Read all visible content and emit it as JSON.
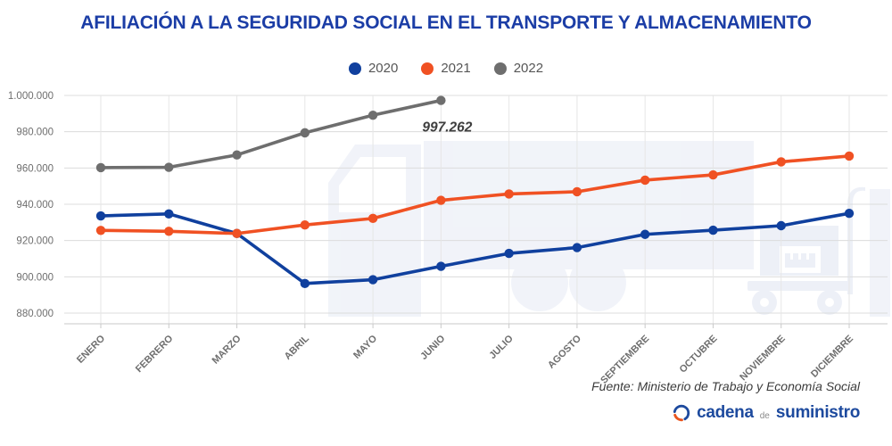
{
  "title": "AFILIACIÓN A LA SEGURIDAD SOCIAL EN EL TRANSPORTE Y ALMACENAMIENTO",
  "colors": {
    "title": "#1b3da6",
    "axis_text": "#6e6e6e",
    "grid": "#dcdcdc",
    "vgrid": "#e6e6e6",
    "axis_line": "#c9c9c9",
    "annotation": "#3f3f3f",
    "source_text": "#3c3c3c",
    "legend_text": "#565656",
    "logo_blue": "#1d4a9e",
    "logo_orange": "#e8541d",
    "watermark": "#e9edf6"
  },
  "chart_data": {
    "type": "line",
    "categories": [
      "ENERO",
      "FEBRERO",
      "MARZO",
      "ABRIL",
      "MAYO",
      "JUNIO",
      "JULIO",
      "AGOSTO",
      "SEPTIEMBRE",
      "OCTUBRE",
      "NOVIEMBRE",
      "DICIEMBRE"
    ],
    "series": [
      {
        "name": "2020",
        "color": "#10409e",
        "values": [
          933600,
          934700,
          923900,
          896300,
          898400,
          905800,
          912900,
          916100,
          923400,
          925700,
          928200,
          935000
        ]
      },
      {
        "name": "2021",
        "color": "#f05123",
        "values": [
          925600,
          925100,
          923900,
          928600,
          932200,
          942200,
          945700,
          946900,
          953300,
          956200,
          963400,
          966600
        ]
      },
      {
        "name": "2022",
        "color": "#6e6e6e",
        "values": [
          960200,
          960400,
          967200,
          979400,
          989100,
          997262
        ]
      }
    ],
    "annotation": {
      "label": "997.262",
      "series": "2022",
      "month": "JUNIO",
      "value": 997262
    },
    "ylim": [
      880000,
      1000000
    ],
    "ytick_step": 20000,
    "ytick_labels": [
      "880.000",
      "900.000",
      "920.000",
      "940.000",
      "960.000",
      "980.000",
      "1.000.000"
    ],
    "grid": true,
    "legend_position": "top",
    "xlabel": "",
    "ylabel": ""
  },
  "footer": {
    "source": "Fuente: Ministerio de Trabajo y Economía Social"
  },
  "logo": {
    "word1": "cadena",
    "word2": "de",
    "word3": "suministro"
  }
}
